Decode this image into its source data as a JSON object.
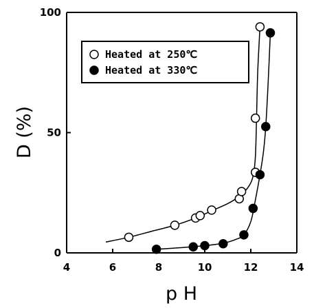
{
  "chart_data": {
    "type": "scatter",
    "xlabel": "p H",
    "ylabel": "D (%)",
    "xlim": [
      4,
      14
    ],
    "ylim": [
      0,
      100
    ],
    "x_ticks": [
      4,
      6,
      8,
      10,
      12,
      14
    ],
    "y_ticks": [
      0,
      50,
      100
    ],
    "x_tick_labels": [
      "4",
      "6",
      "8",
      "10",
      "12",
      "14"
    ],
    "y_tick_labels": [
      "0",
      "50",
      "100"
    ],
    "grid": false,
    "legend_position": "top-left",
    "series": [
      {
        "name": "Heated at 250℃",
        "marker": "open-circle",
        "points": [
          {
            "x": 6.7,
            "y": 6.5
          },
          {
            "x": 8.7,
            "y": 11.5
          },
          {
            "x": 9.6,
            "y": 14.5
          },
          {
            "x": 9.8,
            "y": 15.5
          },
          {
            "x": 10.3,
            "y": 17.8
          },
          {
            "x": 11.5,
            "y": 22.5
          },
          {
            "x": 11.6,
            "y": 25.5
          },
          {
            "x": 12.2,
            "y": 33.5
          },
          {
            "x": 12.2,
            "y": 56
          },
          {
            "x": 12.4,
            "y": 94
          }
        ],
        "curve": [
          {
            "x": 5.7,
            "y": 4.5
          },
          {
            "x": 6.7,
            "y": 6.5
          },
          {
            "x": 7.7,
            "y": 9
          },
          {
            "x": 8.7,
            "y": 11.5
          },
          {
            "x": 9.6,
            "y": 14.5
          },
          {
            "x": 10.3,
            "y": 17.5
          },
          {
            "x": 11.0,
            "y": 20.5
          },
          {
            "x": 11.5,
            "y": 23.5
          },
          {
            "x": 11.9,
            "y": 27.5
          },
          {
            "x": 12.1,
            "y": 32
          },
          {
            "x": 12.2,
            "y": 40
          },
          {
            "x": 12.25,
            "y": 56
          },
          {
            "x": 12.3,
            "y": 75
          },
          {
            "x": 12.4,
            "y": 94
          }
        ]
      },
      {
        "name": "Heated at 330℃",
        "marker": "filled-circle",
        "points": [
          {
            "x": 7.9,
            "y": 1.5
          },
          {
            "x": 9.5,
            "y": 2.5
          },
          {
            "x": 10.0,
            "y": 3.0
          },
          {
            "x": 10.8,
            "y": 3.8
          },
          {
            "x": 11.7,
            "y": 7.5
          },
          {
            "x": 12.1,
            "y": 18.5
          },
          {
            "x": 12.4,
            "y": 32.5
          },
          {
            "x": 12.65,
            "y": 52.5
          },
          {
            "x": 12.85,
            "y": 91.5
          }
        ],
        "curve": [
          {
            "x": 7.9,
            "y": 1.5
          },
          {
            "x": 9.0,
            "y": 2.2
          },
          {
            "x": 10.0,
            "y": 3.0
          },
          {
            "x": 10.8,
            "y": 4.0
          },
          {
            "x": 11.4,
            "y": 5.8
          },
          {
            "x": 11.7,
            "y": 7.5
          },
          {
            "x": 12.0,
            "y": 13
          },
          {
            "x": 12.2,
            "y": 22
          },
          {
            "x": 12.4,
            "y": 32.5
          },
          {
            "x": 12.55,
            "y": 42
          },
          {
            "x": 12.65,
            "y": 52.5
          },
          {
            "x": 12.75,
            "y": 70
          },
          {
            "x": 12.85,
            "y": 91.5
          }
        ]
      }
    ]
  }
}
